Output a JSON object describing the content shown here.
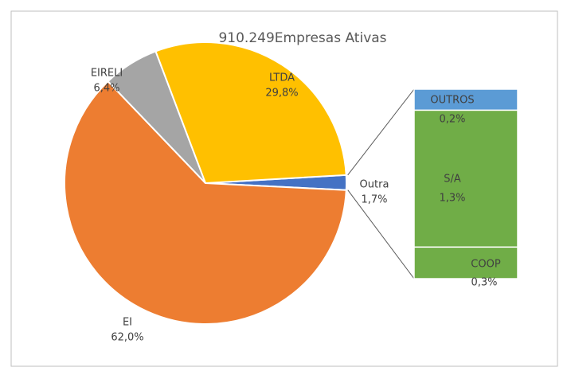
{
  "chart_data": {
    "type": "pie-of-bar",
    "title": "910.249Empresas Ativas",
    "categories": [
      "Outra",
      "EI",
      "EIRELI",
      "LTDA"
    ],
    "values": [
      1.7,
      62.0,
      6.4,
      29.8
    ],
    "value_labels": [
      "1,7%",
      "62,0%",
      "6,4%",
      "29,8%"
    ],
    "colors": [
      "#4472c4",
      "#ed7d31",
      "#a5a5a5",
      "#ffc000"
    ],
    "bar": {
      "categories": [
        "OUTROS",
        "S/A",
        "COOP"
      ],
      "values": [
        0.2,
        1.3,
        0.3
      ],
      "value_labels": [
        "0,2%",
        "1,3%",
        "0,3%"
      ],
      "colors": [
        "#5b9bd5",
        "#70ad47",
        "#70ad47"
      ]
    }
  }
}
